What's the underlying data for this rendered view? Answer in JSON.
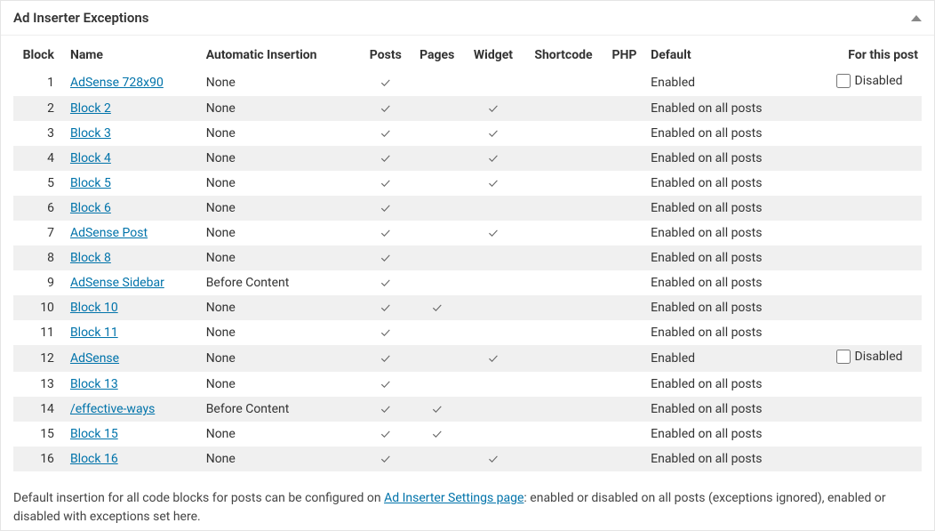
{
  "panel": {
    "title": "Ad Inserter Exceptions"
  },
  "table": {
    "headers": {
      "block": "Block",
      "name": "Name",
      "auto": "Automatic Insertion",
      "posts": "Posts",
      "pages": "Pages",
      "widget": "Widget",
      "shortcode": "Shortcode",
      "php": "PHP",
      "default": "Default",
      "for_this_post": "For this post"
    },
    "checkmark": "✓",
    "disabled_label": "Disabled",
    "rows": [
      {
        "n": 1,
        "name": "AdSense 728x90",
        "auto": "None",
        "posts": true,
        "pages": false,
        "widget": false,
        "default": "Enabled",
        "show_disable": true
      },
      {
        "n": 2,
        "name": "Block 2",
        "auto": "None",
        "posts": true,
        "pages": false,
        "widget": true,
        "default": "Enabled on all posts",
        "show_disable": false
      },
      {
        "n": 3,
        "name": "Block 3",
        "auto": "None",
        "posts": true,
        "pages": false,
        "widget": true,
        "default": "Enabled on all posts",
        "show_disable": false
      },
      {
        "n": 4,
        "name": "Block 4",
        "auto": "None",
        "posts": true,
        "pages": false,
        "widget": true,
        "default": "Enabled on all posts",
        "show_disable": false
      },
      {
        "n": 5,
        "name": "Block 5",
        "auto": "None",
        "posts": true,
        "pages": false,
        "widget": true,
        "default": "Enabled on all posts",
        "show_disable": false
      },
      {
        "n": 6,
        "name": "Block 6",
        "auto": "None",
        "posts": true,
        "pages": false,
        "widget": false,
        "default": "Enabled on all posts",
        "show_disable": false
      },
      {
        "n": 7,
        "name": "AdSense Post",
        "auto": "None",
        "posts": true,
        "pages": false,
        "widget": true,
        "default": "Enabled on all posts",
        "show_disable": false
      },
      {
        "n": 8,
        "name": "Block 8",
        "auto": "None",
        "posts": true,
        "pages": false,
        "widget": false,
        "default": "Enabled on all posts",
        "show_disable": false
      },
      {
        "n": 9,
        "name": "AdSense Sidebar",
        "auto": "Before Content",
        "posts": true,
        "pages": false,
        "widget": false,
        "default": "Enabled on all posts",
        "show_disable": false
      },
      {
        "n": 10,
        "name": "Block 10",
        "auto": "None",
        "posts": true,
        "pages": true,
        "widget": false,
        "default": "Enabled on all posts",
        "show_disable": false
      },
      {
        "n": 11,
        "name": "Block 11",
        "auto": "None",
        "posts": true,
        "pages": false,
        "widget": false,
        "default": "Enabled on all posts",
        "show_disable": false
      },
      {
        "n": 12,
        "name": "AdSense",
        "auto": "None",
        "posts": true,
        "pages": false,
        "widget": true,
        "default": "Enabled",
        "show_disable": true
      },
      {
        "n": 13,
        "name": "Block 13",
        "auto": "None",
        "posts": true,
        "pages": false,
        "widget": false,
        "default": "Enabled on all posts",
        "show_disable": false
      },
      {
        "n": 14,
        "name": "/effective-ways",
        "auto": "Before Content",
        "posts": true,
        "pages": true,
        "widget": false,
        "default": "Enabled on all posts",
        "show_disable": false
      },
      {
        "n": 15,
        "name": "Block 15",
        "auto": "None",
        "posts": true,
        "pages": true,
        "widget": false,
        "default": "Enabled on all posts",
        "show_disable": false
      },
      {
        "n": 16,
        "name": "Block 16",
        "auto": "None",
        "posts": true,
        "pages": false,
        "widget": true,
        "default": "Enabled on all posts",
        "show_disable": false
      }
    ]
  },
  "footer": {
    "text_before": "Default insertion for all code blocks for posts can be configured on ",
    "link_text": "Ad Inserter Settings page",
    "text_after": ": enabled or disabled on all posts (exceptions ignored), enabled or disabled with exceptions set here."
  },
  "style": {
    "link_color": "#0073aa",
    "row_alt_bg": "#f0f0f0",
    "border_color": "#e5e5e5",
    "text_color": "#333",
    "triangle_color": "#888"
  }
}
